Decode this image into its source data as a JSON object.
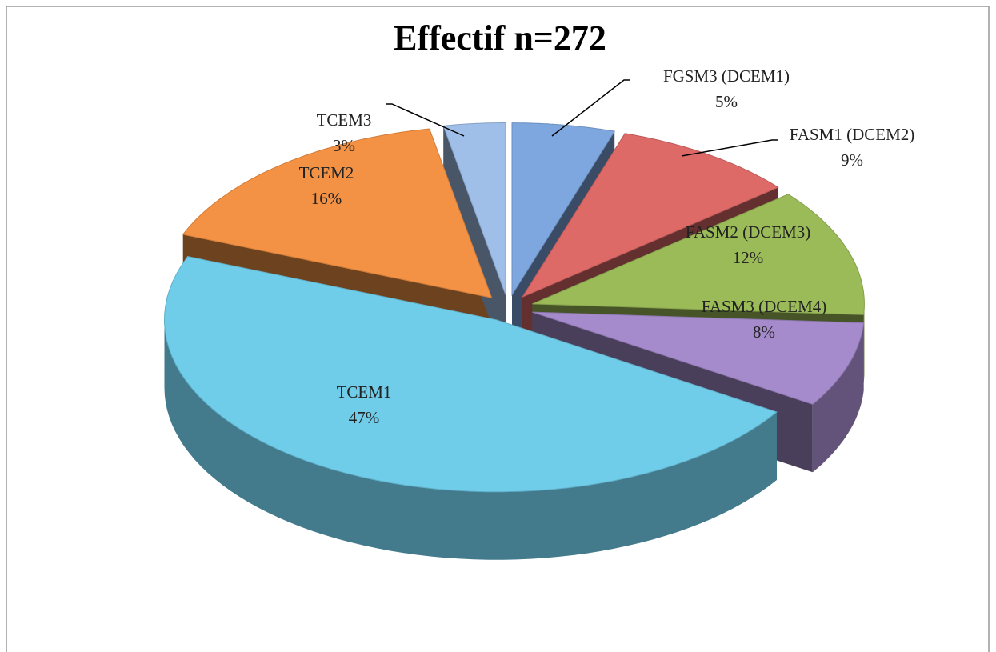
{
  "chart_data": {
    "type": "pie3d",
    "title": "Effectif n=272",
    "categories": [
      "FGSM3 (DCEM1)",
      "FASM1 (DCEM2)",
      "FASM2 (DCEM3)",
      "FASM3 (DCEM4)",
      "TCEM1",
      "TCEM2",
      "TCEM3"
    ],
    "values": [
      5,
      9,
      12,
      8,
      47,
      16,
      3
    ],
    "value_labels": [
      "5%",
      "9%",
      "12%",
      "8%",
      "47%",
      "16%",
      "3%"
    ],
    "colors": [
      "#7ea7e0",
      "#de6a68",
      "#9bbb59",
      "#a58bcb",
      "#70cdea",
      "#f39244",
      "#9fbee8"
    ]
  }
}
